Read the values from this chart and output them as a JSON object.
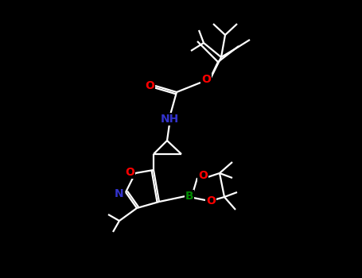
{
  "background_color": "#000000",
  "bond_color": "#ffffff",
  "atom_colors": {
    "O": "#ff0000",
    "N": "#3333cc",
    "B": "#008800",
    "C": "#ffffff"
  },
  "figsize": [
    4.55,
    3.5
  ],
  "dpi": 100,
  "lw": 1.6,
  "fs": 10
}
